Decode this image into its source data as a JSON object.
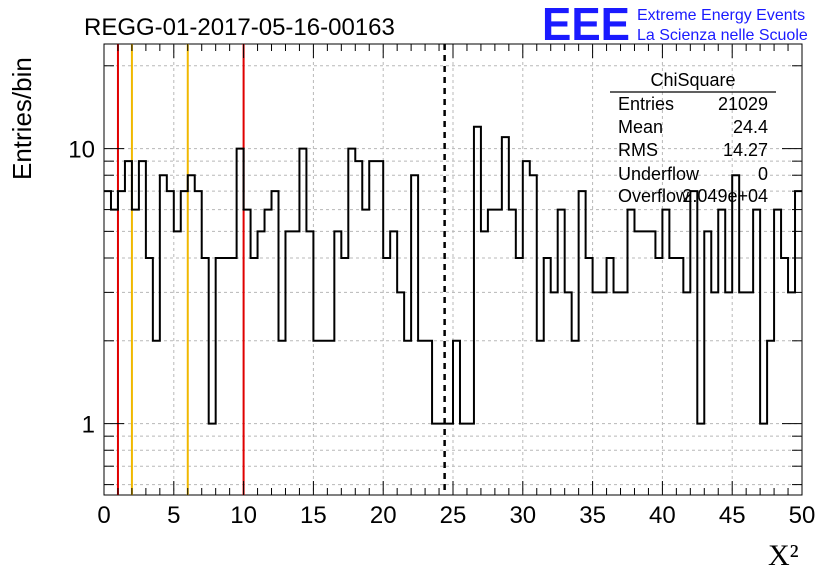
{
  "header": {
    "run_title": "REGG-01-2017-05-16-00163",
    "logo_text": "EEE",
    "org_line1": "Extreme Energy Events",
    "org_line2": "La Scienza nelle Scuole",
    "brand_color": "#1a1aff"
  },
  "stats_box": {
    "title": "ChiSquare",
    "rows": [
      {
        "label": "Entries",
        "value": "21029"
      },
      {
        "label": "Mean",
        "value": "24.4"
      },
      {
        "label": "RMS",
        "value": "14.27"
      },
      {
        "label": "Underflow",
        "value": "0"
      },
      {
        "label": "Overflow",
        "value": "2.049e+04"
      }
    ]
  },
  "chart_data": {
    "type": "histogram",
    "title": "REGG-01-2017-05-16-00163",
    "xlabel": "X²",
    "ylabel": "Entries/bin",
    "xlim": [
      0,
      50
    ],
    "ylim": [
      0.55,
      24
    ],
    "y_scale": "log",
    "grid": true,
    "bin_width": 0.5,
    "x_ticks": [
      "0",
      "5",
      "10",
      "15",
      "20",
      "25",
      "30",
      "35",
      "40",
      "45",
      "50"
    ],
    "y_ticks": [
      "1",
      "10"
    ],
    "values": [
      7,
      6,
      7,
      9,
      6,
      9,
      4,
      2,
      8,
      7,
      5,
      7,
      8,
      7,
      4,
      1,
      4,
      4,
      4,
      10,
      6,
      4,
      5,
      6,
      7,
      2,
      5,
      5,
      10,
      5,
      2,
      2,
      2,
      5,
      4,
      10,
      9,
      6,
      9,
      9,
      4,
      5,
      3,
      2,
      8,
      2,
      2,
      1,
      1,
      1,
      2,
      1,
      1,
      12,
      5,
      6,
      6,
      11,
      6,
      4,
      9,
      8,
      2,
      4,
      3,
      6,
      3,
      2,
      7,
      4,
      3,
      3,
      4,
      3,
      3,
      6,
      5,
      5,
      5,
      4,
      6,
      4,
      4,
      3,
      7,
      1,
      5,
      3,
      6,
      3,
      8,
      3,
      3,
      6,
      1,
      2,
      6,
      4,
      3,
      7
    ],
    "reference_lines": [
      {
        "x": 1,
        "color": "#e00000",
        "style": "solid"
      },
      {
        "x": 2,
        "color": "#f0b800",
        "style": "solid"
      },
      {
        "x": 6,
        "color": "#f0b800",
        "style": "solid"
      },
      {
        "x": 10,
        "color": "#e00000",
        "style": "solid"
      },
      {
        "x": 24.4,
        "color": "#000000",
        "style": "dashed"
      }
    ]
  }
}
